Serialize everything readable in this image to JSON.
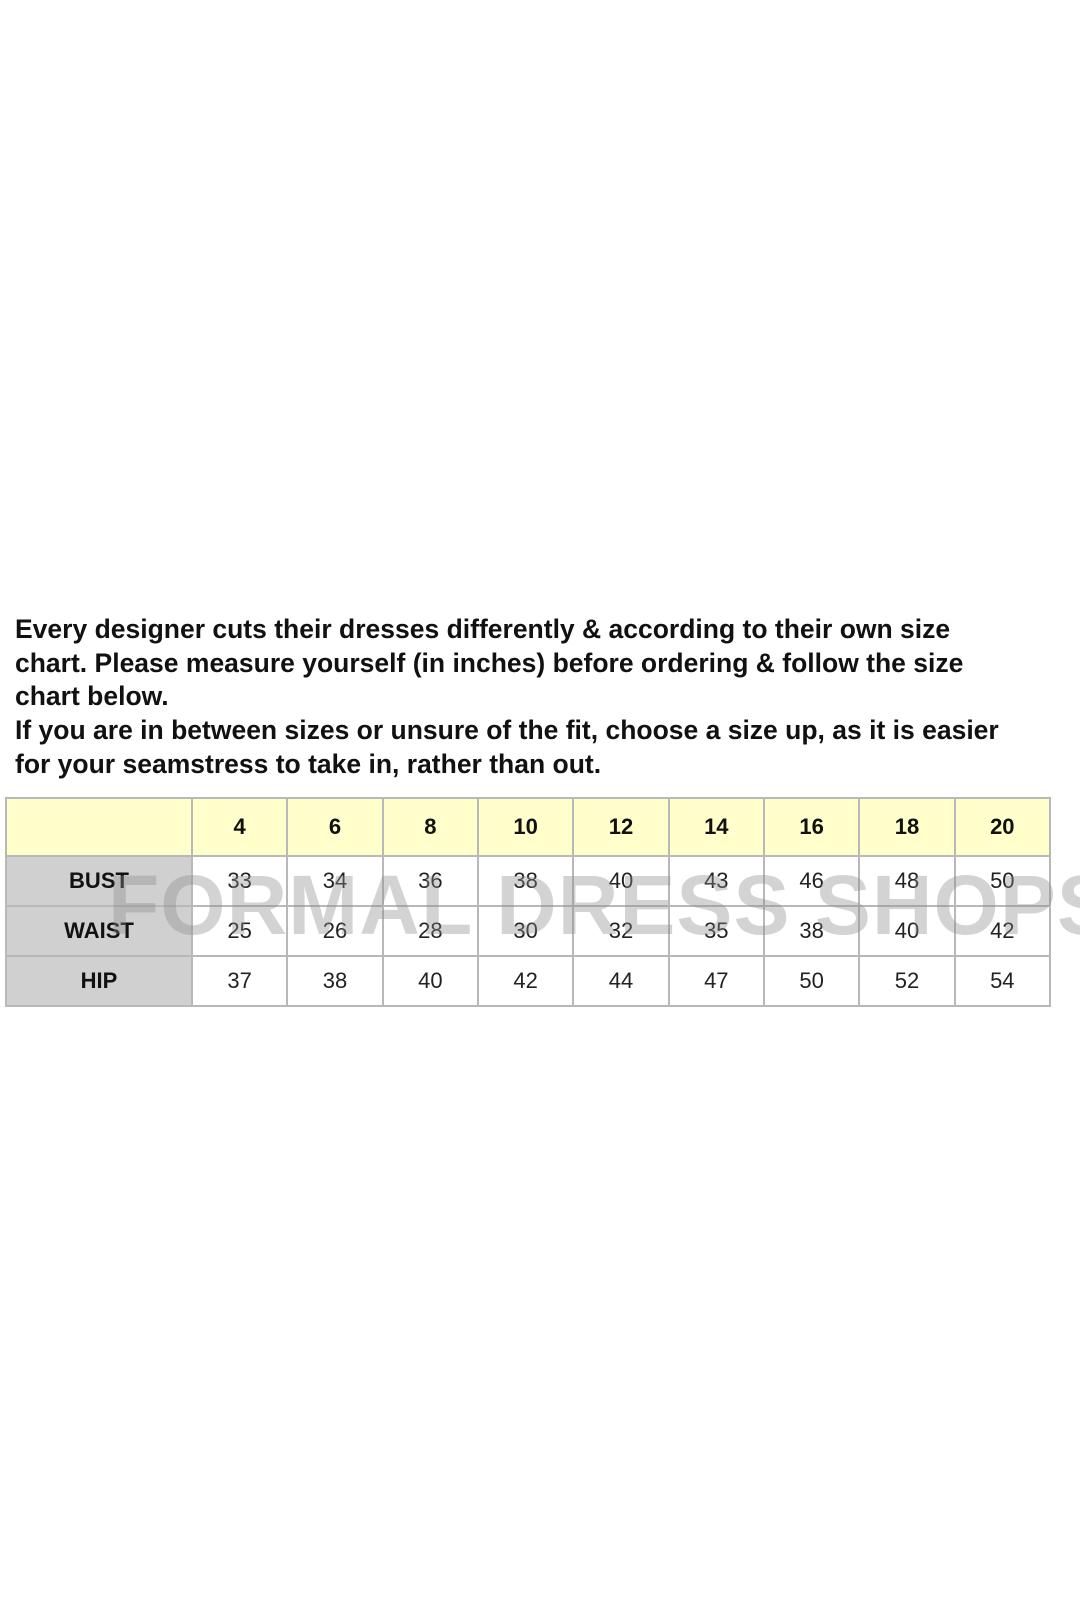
{
  "intro": {
    "lines": [
      "Every designer cuts their dresses differently & according to their own size",
      "chart. Please measure yourself (in inches) before ordering & follow the size",
      "chart below.",
      "If you are in between sizes or unsure of the fit, choose a size up, as it is easier",
      "for your seamstress to take in, rather than out."
    ]
  },
  "size_chart": {
    "sizes": [
      "4",
      "6",
      "8",
      "10",
      "12",
      "14",
      "16",
      "18",
      "20"
    ],
    "rows": [
      {
        "label": "BUST",
        "values": [
          "33",
          "34",
          "36",
          "38",
          "40",
          "43",
          "46",
          "48",
          "50"
        ]
      },
      {
        "label": "WAIST",
        "values": [
          "25",
          "26",
          "28",
          "30",
          "32",
          "35",
          "38",
          "40",
          "42"
        ]
      },
      {
        "label": "HIP",
        "values": [
          "37",
          "38",
          "40",
          "42",
          "44",
          "47",
          "50",
          "52",
          "54"
        ]
      }
    ],
    "header_color": "#ffffcc",
    "label_color": "#d0d0d0"
  },
  "watermark": "FORMAL DRESS SHOPS"
}
